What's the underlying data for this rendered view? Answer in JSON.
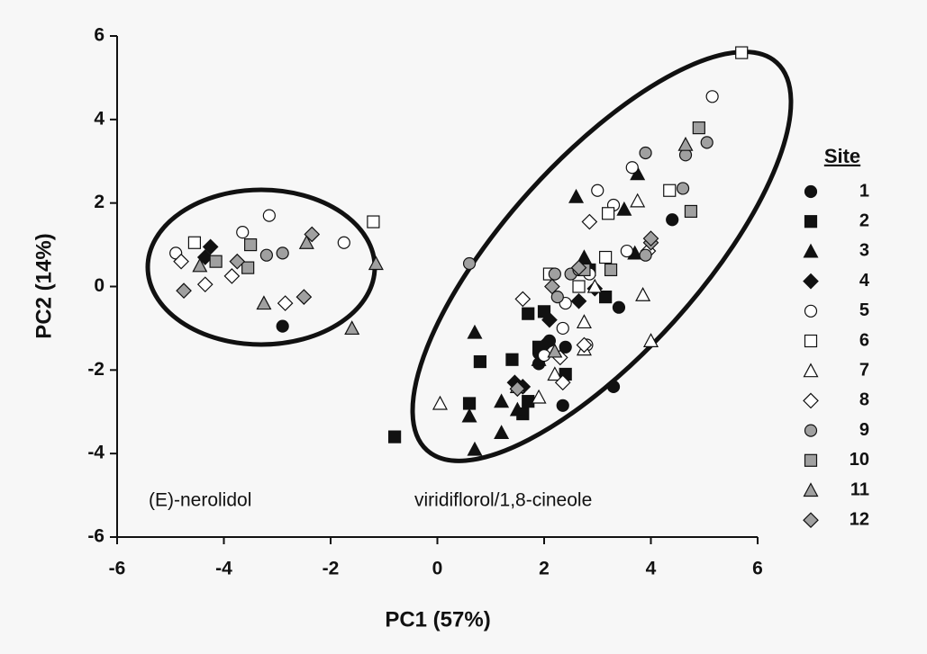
{
  "chart_data": {
    "type": "scatter",
    "x_label": "PC1 (57%)",
    "y_label": "PC2 (14%)",
    "xlim": [
      -6,
      6
    ],
    "xticks": [
      -6,
      -4,
      -2,
      0,
      2,
      4,
      6
    ],
    "ylim": [
      -6,
      6
    ],
    "yticks": [
      -6,
      -4,
      -2,
      0,
      2,
      4,
      6
    ],
    "grid": false,
    "legend_title": "Site",
    "legend_position": "right",
    "annotations": [
      "(E)-nerolidol",
      "viridiflorol/1,8-cineole"
    ],
    "series": [
      {
        "name": "1",
        "marker": "circle",
        "color": "#111111",
        "x": [
          -2.9,
          4.4,
          3.4,
          3.3,
          2.35,
          1.9,
          2.4,
          2.1,
          1.9
        ],
        "values": [
          -0.95,
          1.6,
          -0.5,
          -2.4,
          -2.85,
          -1.85,
          -1.45,
          -1.3,
          -1.6
        ]
      },
      {
        "name": "2",
        "marker": "square",
        "color": "#111111",
        "x": [
          -0.8,
          0.6,
          0.8,
          1.4,
          1.7,
          1.6,
          2.0,
          1.7,
          1.9,
          2.4,
          3.15,
          2.85
        ],
        "values": [
          -3.6,
          -2.8,
          -1.8,
          -1.75,
          -2.75,
          -3.05,
          -0.6,
          -0.65,
          -1.45,
          -2.1,
          -0.25,
          0.4
        ]
      },
      {
        "name": "3",
        "marker": "triangle",
        "color": "#111111",
        "x": [
          0.7,
          0.6,
          0.7,
          1.2,
          1.2,
          1.5,
          2.6,
          2.75,
          3.5,
          3.7,
          3.75,
          1.9
        ],
        "values": [
          -1.1,
          -3.1,
          -3.9,
          -3.5,
          -2.75,
          -2.95,
          2.15,
          0.7,
          1.85,
          0.8,
          2.7,
          -1.75
        ]
      },
      {
        "name": "4",
        "marker": "diamond",
        "color": "#111111",
        "x": [
          -4.25,
          2.05,
          1.45,
          2.1,
          2.65,
          2.95,
          1.6,
          -4.35
        ],
        "values": [
          0.95,
          -1.35,
          -2.3,
          -0.8,
          -0.35,
          -0.05,
          -2.4,
          0.7
        ]
      },
      {
        "name": "5",
        "marker": "circle",
        "color": "#ffffff",
        "x": [
          -4.9,
          -3.15,
          -3.65,
          -1.75,
          3.0,
          3.3,
          3.65,
          5.15,
          2.35,
          2.8,
          2.4,
          3.55,
          2.0,
          2.85
        ],
        "values": [
          0.8,
          1.7,
          1.3,
          1.05,
          2.3,
          1.95,
          2.85,
          4.55,
          -1.0,
          -1.4,
          -0.4,
          0.85,
          -1.65,
          0.3
        ]
      },
      {
        "name": "6",
        "marker": "square",
        "color": "#ffffff",
        "x": [
          -4.55,
          -1.2,
          3.2,
          4.35,
          3.15,
          5.7,
          2.65,
          2.1
        ],
        "values": [
          1.05,
          1.55,
          1.75,
          2.3,
          0.7,
          5.6,
          0,
          0.3
        ]
      },
      {
        "name": "7",
        "marker": "triangle",
        "color": "#ffffff",
        "x": [
          0.05,
          1.5,
          1.9,
          2.2,
          2.75,
          2.75,
          3.75,
          3.85,
          4.0,
          2.95
        ],
        "values": [
          -2.8,
          -2.4,
          -2.65,
          -2.1,
          -0.85,
          -1.5,
          2.05,
          -0.2,
          -1.3,
          0
        ]
      },
      {
        "name": "8",
        "marker": "diamond",
        "color": "#ffffff",
        "x": [
          -4.8,
          -4.35,
          -2.85,
          2.85,
          1.6,
          2.35,
          2.3,
          3.95,
          2.75,
          -3.85
        ],
        "values": [
          0.6,
          0.05,
          -0.4,
          1.55,
          -0.3,
          -2.3,
          -1.7,
          0.85,
          -1.4,
          0.25
        ]
      },
      {
        "name": "9",
        "marker": "circle",
        "color": "#a0a0a0",
        "x": [
          0.6,
          -3.2,
          -2.9,
          2.2,
          2.5,
          2.25,
          3.9,
          4.6,
          4.65,
          5.05,
          2.65,
          3.9
        ],
        "values": [
          0.55,
          0.75,
          0.8,
          0.3,
          0.3,
          -0.25,
          3.2,
          2.35,
          3.15,
          3.45,
          0.4,
          0.75
        ]
      },
      {
        "name": "10",
        "marker": "square",
        "color": "#a0a0a0",
        "x": [
          -3.55,
          -3.5,
          4.9,
          4.75,
          3.25,
          2.75,
          -4.15
        ],
        "values": [
          0.45,
          1.0,
          3.8,
          1.8,
          0.4,
          0.4,
          0.6
        ]
      },
      {
        "name": "11",
        "marker": "triangle",
        "color": "#a0a0a0",
        "x": [
          -3.25,
          -2.45,
          -1.15,
          -1.6,
          4.65,
          2.2,
          -4.45
        ],
        "values": [
          -0.4,
          1.05,
          0.55,
          -1.0,
          3.4,
          -1.55,
          0.5
        ]
      },
      {
        "name": "12",
        "marker": "diamond",
        "color": "#a0a0a0",
        "x": [
          -4.75,
          -2.5,
          -2.35,
          2.65,
          2.15,
          4.0,
          4.0,
          -3.75,
          1.5
        ],
        "values": [
          -0.1,
          -0.25,
          1.25,
          0.45,
          0,
          1.05,
          1.15,
          0.6,
          -2.45
        ]
      }
    ]
  }
}
